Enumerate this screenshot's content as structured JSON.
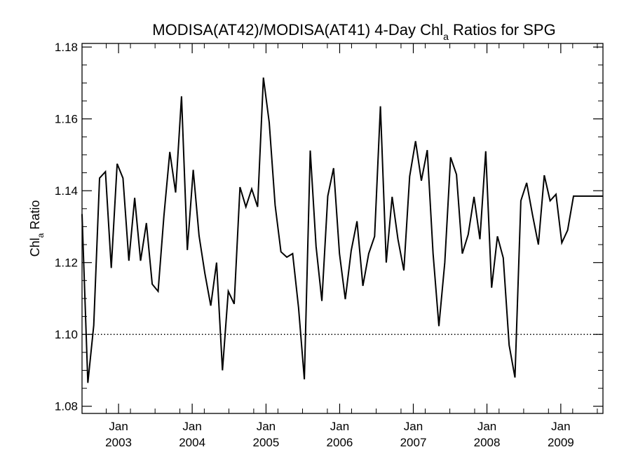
{
  "chart_data": {
    "type": "line",
    "title_main": "MODISA(AT42)/MODISA(AT41) 4-Day Chl",
    "title_sub": "a",
    "title_tail": " Ratios for SPG",
    "ylabel_main": "Chl",
    "ylabel_sub": "a",
    "ylabel_tail": " Ratio",
    "xlabel": "",
    "xlim": [
      "2002-07-04",
      "2009-07-29"
    ],
    "ylim": [
      1.078,
      1.181
    ],
    "y_ticks": [
      1.08,
      1.1,
      1.12,
      1.14,
      1.16,
      1.18
    ],
    "y_tick_labels": [
      "1.08",
      "1.10",
      "1.12",
      "1.14",
      "1.16",
      "1.18"
    ],
    "x_ticks": [
      "2003-01-01",
      "2004-01-01",
      "2005-01-01",
      "2006-01-01",
      "2007-01-01",
      "2008-01-01",
      "2009-01-01"
    ],
    "x_tick_month": "Jan",
    "x_tick_years": [
      "2003",
      "2004",
      "2005",
      "2006",
      "2007",
      "2008",
      "2009"
    ],
    "reference_line": {
      "y": 1.1,
      "style": "dotted"
    },
    "grid": false,
    "series": [
      {
        "x": [
          "2002-07-04",
          "2002-08-02",
          "2002-08-31",
          "2002-09-29",
          "2002-10-28",
          "2002-11-26",
          "2002-12-25",
          "2003-01-23",
          "2003-02-21",
          "2003-03-22",
          "2003-04-20",
          "2003-05-19",
          "2003-06-17",
          "2003-07-16",
          "2003-08-14",
          "2003-09-12",
          "2003-10-11",
          "2003-11-09",
          "2003-12-08",
          "2004-01-06",
          "2004-02-04",
          "2004-03-04",
          "2004-04-02",
          "2004-05-01",
          "2004-05-30",
          "2004-06-28",
          "2004-07-27",
          "2004-08-25",
          "2004-09-23",
          "2004-10-22",
          "2004-11-20",
          "2004-12-19",
          "2005-01-17",
          "2005-02-15",
          "2005-03-16",
          "2005-04-14",
          "2005-05-13",
          "2005-06-11",
          "2005-07-10",
          "2005-08-08",
          "2005-09-06",
          "2005-10-05",
          "2005-11-03",
          "2005-12-02",
          "2005-12-31",
          "2006-01-29",
          "2006-02-27",
          "2006-03-28",
          "2006-04-26",
          "2006-05-25",
          "2006-06-23",
          "2006-07-22",
          "2006-08-20",
          "2006-09-18",
          "2006-10-17",
          "2006-11-15",
          "2006-12-14",
          "2007-01-12",
          "2007-02-10",
          "2007-03-11",
          "2007-04-09",
          "2007-05-08",
          "2007-06-06",
          "2007-07-05",
          "2007-08-03",
          "2007-09-01",
          "2007-09-30",
          "2007-10-29",
          "2007-11-27",
          "2007-12-26",
          "2008-01-24",
          "2008-02-22",
          "2008-03-22",
          "2008-04-20",
          "2008-05-19",
          "2008-06-17",
          "2008-07-16",
          "2008-08-14",
          "2008-09-12",
          "2008-10-11",
          "2008-11-09",
          "2008-12-08",
          "2009-01-06",
          "2009-02-04",
          "2009-03-05",
          "2009-04-03",
          "2009-05-02",
          "2009-05-31",
          "2009-06-29",
          "2009-07-29"
        ],
        "y": [
          1.1335,
          1.0865,
          1.1025,
          1.1435,
          1.1453,
          1.1185,
          1.1475,
          1.1435,
          1.1205,
          1.138,
          1.1205,
          1.131,
          1.114,
          1.112,
          1.133,
          1.1508,
          1.1395,
          1.1663,
          1.1235,
          1.1458,
          1.1275,
          1.117,
          1.108,
          1.12,
          1.09,
          1.112,
          1.1085,
          1.141,
          1.1355,
          1.1405,
          1.1355,
          1.1715,
          1.159,
          1.136,
          1.123,
          1.1215,
          1.1225,
          1.1075,
          1.0875,
          1.1512,
          1.1245,
          1.1093,
          1.1385,
          1.1463,
          1.1225,
          1.1098,
          1.1233,
          1.1315,
          1.1135,
          1.1225,
          1.1273,
          1.1635,
          1.12,
          1.1383,
          1.1265,
          1.1178,
          1.144,
          1.1538,
          1.1428,
          1.1513,
          1.1225,
          1.1023,
          1.12,
          1.1493,
          1.1445,
          1.1225,
          1.1278,
          1.1383,
          1.1265,
          1.151,
          1.113,
          1.1273,
          1.1213,
          1.097,
          1.088,
          1.1372,
          1.1422,
          1.1332,
          1.125,
          1.1443,
          1.1372,
          1.139,
          1.1255,
          1.129,
          1.1385,
          1.1385,
          1.1385,
          1.1385,
          1.1385,
          1.1385
        ]
      }
    ]
  }
}
